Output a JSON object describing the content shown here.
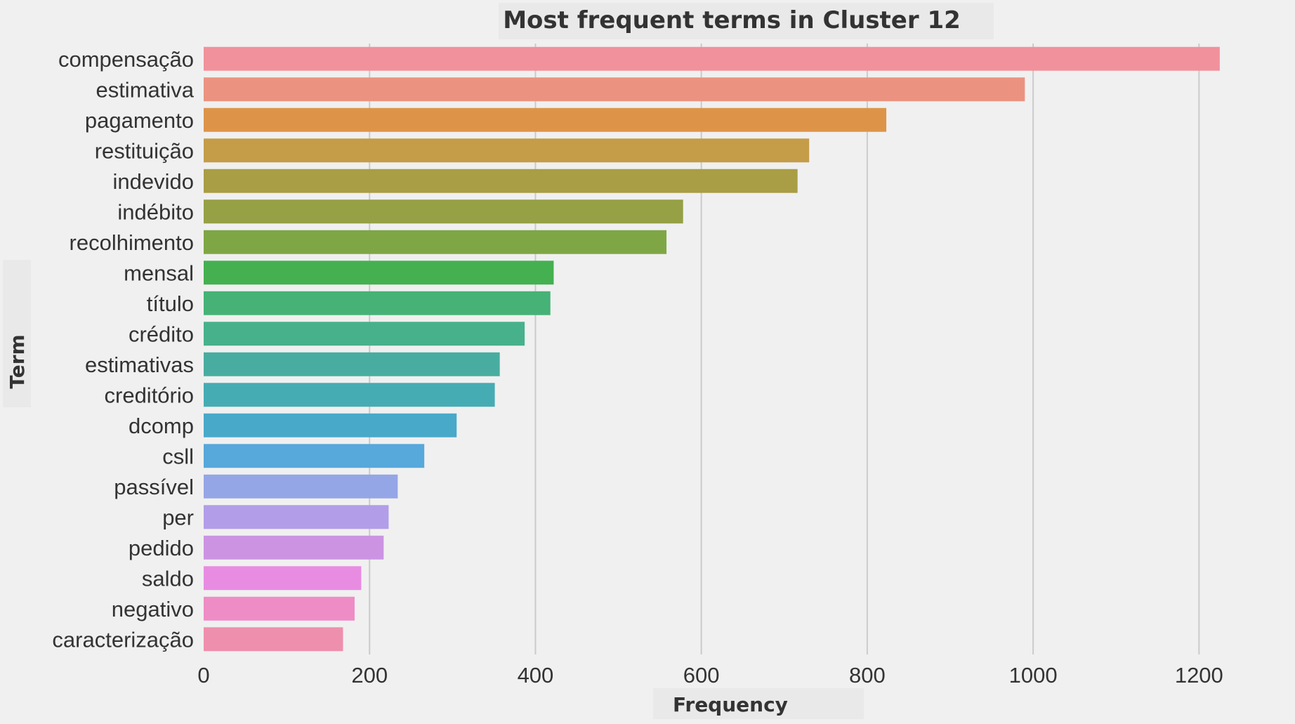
{
  "chart_data": {
    "type": "bar",
    "orientation": "horizontal",
    "title": "Most frequent terms in Cluster 12",
    "xlabel": "Frequency",
    "ylabel": "Term",
    "xlim": [
      0,
      1270
    ],
    "xticks": [
      0,
      200,
      400,
      600,
      800,
      1000,
      1200
    ],
    "grid": "vertical",
    "legend": "none",
    "categories": [
      "compensação",
      "estimativa",
      "pagamento",
      "restituição",
      "indevido",
      "indébito",
      "recolhimento",
      "mensal",
      "título",
      "crédito",
      "estimativas",
      "creditório",
      "dcomp",
      "csll",
      "passível",
      "per",
      "pedido",
      "saldo",
      "negativo",
      "caracterização"
    ],
    "values": [
      1225,
      990,
      823,
      730,
      716,
      578,
      558,
      422,
      418,
      387,
      357,
      351,
      305,
      266,
      234,
      223,
      217,
      190,
      182,
      168
    ],
    "colors": [
      "#f1919b",
      "#eb9380",
      "#dd9448",
      "#c59c48",
      "#a99d45",
      "#96a045",
      "#7fa645",
      "#45b04f",
      "#46b276",
      "#47b18c",
      "#48ada0",
      "#46acb4",
      "#48a9c9",
      "#57a8db",
      "#95a6e6",
      "#b29de9",
      "#cc93e3",
      "#e88ce2",
      "#ee8cc6",
      "#ee8fae"
    ]
  }
}
